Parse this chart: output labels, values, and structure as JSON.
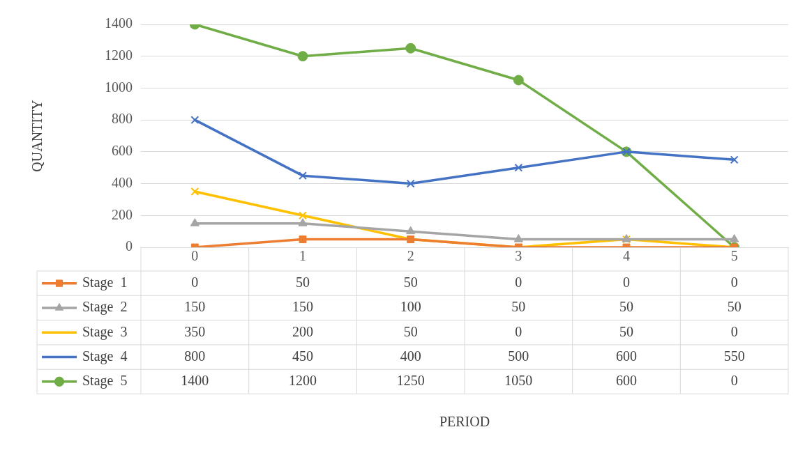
{
  "chart_data": {
    "type": "line",
    "annotations": [
      "PERIOD"
    ],
    "ylabel": "QUANTITY",
    "categories": [
      "0",
      "1",
      "2",
      "3",
      "4",
      "5"
    ],
    "series": [
      {
        "name": "Stage  1",
        "color": "#ed7d31",
        "marker": "square",
        "values": [
          0,
          50,
          50,
          0,
          0,
          0
        ]
      },
      {
        "name": "Stage  2",
        "color": "#a5a5a5",
        "marker": "triangle",
        "values": [
          150,
          150,
          100,
          50,
          50,
          50
        ]
      },
      {
        "name": "Stage  3",
        "color": "#ffc000",
        "marker": "cross",
        "values": [
          350,
          200,
          50,
          0,
          50,
          0
        ]
      },
      {
        "name": "Stage  4",
        "color": "#4472c4",
        "marker": "cross",
        "values": [
          800,
          450,
          400,
          500,
          600,
          550
        ]
      },
      {
        "name": "Stage  5",
        "color": "#70ad47",
        "marker": "circle",
        "values": [
          1400,
          1200,
          1250,
          1050,
          600,
          0
        ]
      }
    ],
    "ylim": [
      0,
      1400
    ],
    "yticks": [
      0,
      200,
      400,
      600,
      800,
      1000,
      1200,
      1400
    ],
    "grid": "y",
    "legend": "bottom",
    "data_labels": true,
    "line_style": "solid"
  }
}
